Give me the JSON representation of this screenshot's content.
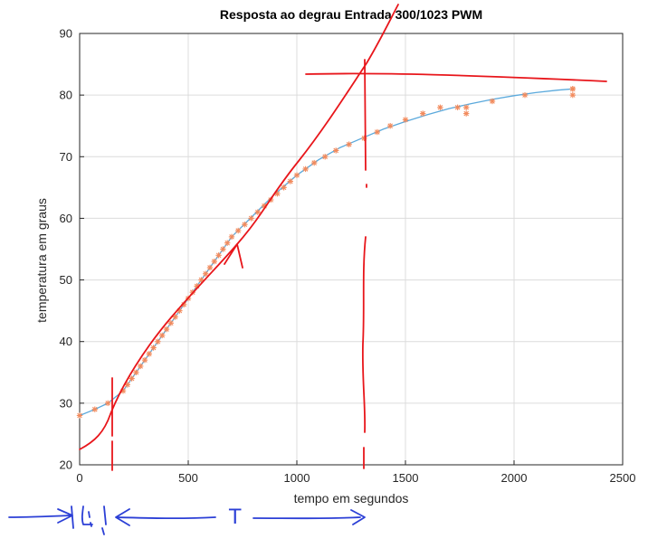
{
  "chart_data": {
    "type": "scatter",
    "title": "Resposta ao degrau Entrada 300/1023 PWM",
    "xlabel": "tempo em segundos",
    "ylabel": "temperatura em graus",
    "xlim": [
      0,
      2500
    ],
    "ylim": [
      20,
      90
    ],
    "xticks": [
      "0",
      "500",
      "1000",
      "1500",
      "2000",
      "2500"
    ],
    "yticks": [
      "20",
      "30",
      "40",
      "50",
      "60",
      "70",
      "80",
      "90"
    ],
    "grid": true,
    "series": [
      {
        "kind": "markers",
        "marker": "asterisk",
        "color": "#f28a5c",
        "x": [
          0,
          70,
          130,
          200,
          220,
          240,
          260,
          280,
          300,
          320,
          340,
          360,
          380,
          400,
          420,
          440,
          460,
          480,
          500,
          520,
          540,
          560,
          580,
          600,
          620,
          640,
          660,
          680,
          700,
          730,
          760,
          790,
          820,
          850,
          880,
          910,
          940,
          970,
          1000,
          1040,
          1080,
          1130,
          1180,
          1240,
          1310,
          1370,
          1430,
          1500,
          1580,
          1660,
          1740,
          1780,
          1780,
          1900,
          2050,
          2270,
          2270,
          2270
        ],
        "y": [
          28,
          29,
          30,
          32,
          33,
          34,
          35,
          36,
          37,
          38,
          39,
          40,
          41,
          42,
          43,
          44,
          45,
          46,
          47,
          48,
          49,
          50,
          51,
          52,
          53,
          54,
          55,
          56,
          57,
          58,
          59,
          60,
          61,
          62,
          63,
          64,
          65,
          66,
          67,
          68,
          69,
          70,
          71,
          72,
          73,
          74,
          75,
          76,
          77,
          78,
          78,
          77,
          78,
          79,
          80,
          81,
          80,
          81
        ]
      },
      {
        "kind": "line",
        "color": "#5aa9dc",
        "x": [
          0,
          70,
          130,
          200,
          300,
          400,
          500,
          600,
          700,
          800,
          900,
          1000,
          1100,
          1200,
          1300,
          1400,
          1500,
          1600,
          1700,
          1800,
          1900,
          2000,
          2100,
          2200,
          2270
        ],
        "y": [
          28,
          29,
          30,
          32,
          37,
          42,
          47,
          52,
          57,
          60.5,
          64,
          67,
          69.5,
          71.5,
          73,
          74.5,
          75.7,
          76.8,
          77.8,
          78.6,
          79.3,
          79.9,
          80.4,
          80.8,
          81
        ]
      }
    ]
  },
  "annotations": {
    "period_label": "T"
  }
}
